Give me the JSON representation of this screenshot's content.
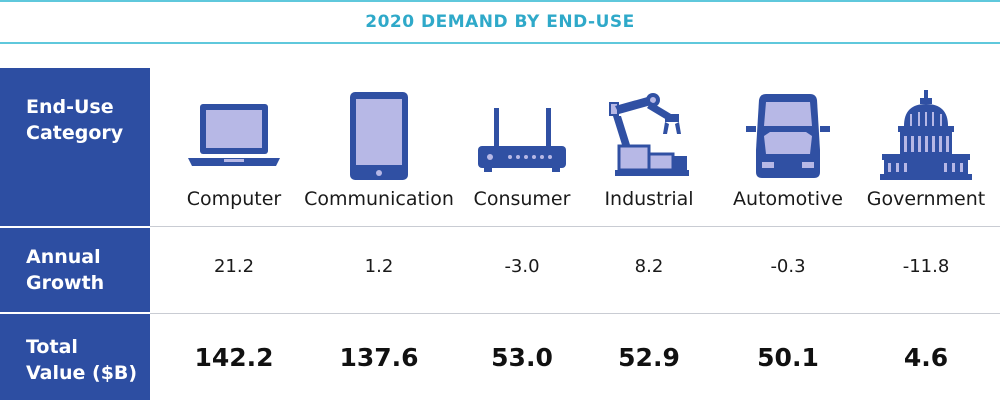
{
  "title": "2020 DEMAND BY END-USE",
  "row_labels": {
    "category": [
      "End-Use",
      "Category"
    ],
    "growth": [
      "Annual",
      "Growth"
    ],
    "total": [
      "Total",
      "Value ($B)"
    ]
  },
  "colors": {
    "accent": "#2fa9c9",
    "rule": "#5fc8dc",
    "sidebar": "#2d4ea2",
    "icon_dark": "#3050a3",
    "icon_light": "#b7b8e6"
  },
  "chart_data": {
    "type": "table",
    "title": "2020 DEMAND BY END-USE",
    "columns": [
      {
        "category": "Computer",
        "icon": "laptop-icon",
        "annual_growth": "21.2",
        "total_value": "142.2"
      },
      {
        "category": "Communication",
        "icon": "tablet-icon",
        "annual_growth": "1.2",
        "total_value": "137.6"
      },
      {
        "category": "Consumer",
        "icon": "router-icon",
        "annual_growth": "-3.0",
        "total_value": "53.0"
      },
      {
        "category": "Industrial",
        "icon": "robot-arm-icon",
        "annual_growth": "8.2",
        "total_value": "52.9"
      },
      {
        "category": "Automotive",
        "icon": "car-icon",
        "annual_growth": "-0.3",
        "total_value": "50.1"
      },
      {
        "category": "Government",
        "icon": "capitol-icon",
        "annual_growth": "-11.8",
        "total_value": "4.6"
      }
    ]
  }
}
